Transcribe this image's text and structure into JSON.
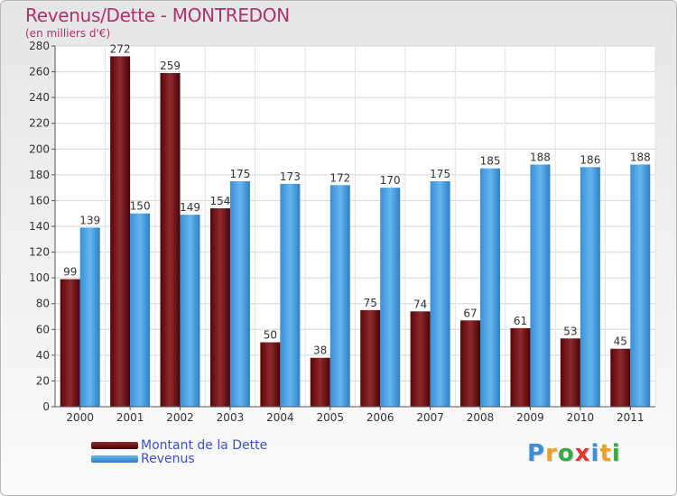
{
  "header": {
    "title": "Revenus/Dette - MONTREDON",
    "subtitle": "(en milliers d'€)"
  },
  "legend": [
    {
      "label": "Montant de la Dette",
      "color": "#6b0d10"
    },
    {
      "label": "Revenus",
      "color": "#4aa3e6"
    }
  ],
  "logo": {
    "text": "Proxiti",
    "letters": [
      {
        "ch": "P",
        "color": "#3a8fd8"
      },
      {
        "ch": "r",
        "color": "#f0a020"
      },
      {
        "ch": "o",
        "color": "#39a845"
      },
      {
        "ch": "x",
        "color": "#e03a2e"
      },
      {
        "ch": "i",
        "color": "#3a8fd8"
      },
      {
        "ch": "t",
        "color": "#f0a020"
      },
      {
        "ch": "i",
        "color": "#39a845"
      }
    ]
  },
  "chart_data": {
    "type": "bar",
    "title": "Revenus/Dette - MONTREDON",
    "subtitle": "(en milliers d'€)",
    "xlabel": "",
    "ylabel": "",
    "categories": [
      "2000",
      "2001",
      "2002",
      "2003",
      "2004",
      "2005",
      "2006",
      "2007",
      "2008",
      "2009",
      "2010",
      "2011"
    ],
    "series": [
      {
        "name": "Montant de la Dette",
        "color": "#6b0d10",
        "values": [
          99,
          272,
          259,
          154,
          50,
          38,
          75,
          74,
          67,
          61,
          53,
          45
        ]
      },
      {
        "name": "Revenus",
        "color": "#4aa3e6",
        "values": [
          139,
          150,
          149,
          175,
          173,
          172,
          170,
          175,
          185,
          188,
          186,
          188
        ]
      }
    ],
    "ylim": [
      0,
      280
    ],
    "yticks": [
      0,
      20,
      40,
      60,
      80,
      100,
      120,
      140,
      160,
      180,
      200,
      220,
      240,
      260,
      280
    ],
    "grid": true,
    "legend_position": "bottom-left"
  }
}
